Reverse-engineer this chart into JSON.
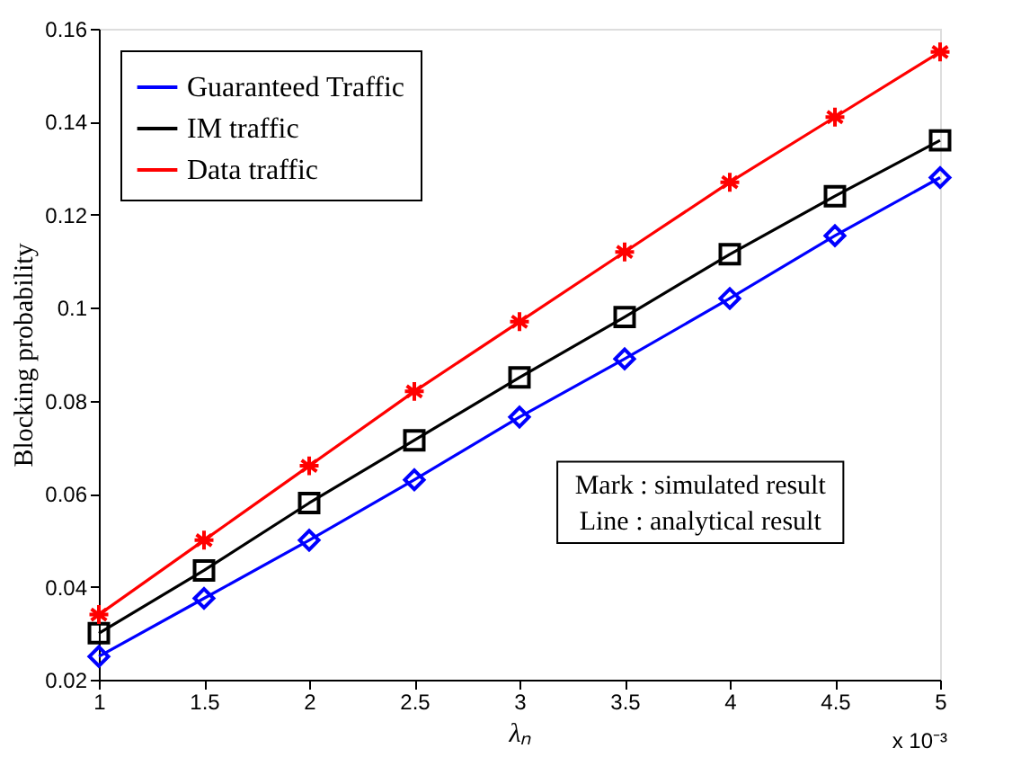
{
  "chart_data": {
    "type": "line",
    "xlabel": "λₙ",
    "ylabel": "Blocking probability",
    "x": [
      1,
      1.5,
      2,
      2.5,
      3,
      3.5,
      4,
      4.5,
      5
    ],
    "xlim": [
      1,
      5
    ],
    "xticks": [
      1,
      1.5,
      2,
      2.5,
      3,
      3.5,
      4,
      4.5,
      5
    ],
    "ylim": [
      0.02,
      0.16
    ],
    "yticks": [
      0.02,
      0.04,
      0.06,
      0.08,
      0.1,
      0.12,
      0.14,
      0.16
    ],
    "grid": false,
    "legend": "top left",
    "line_style": "solid",
    "series": [
      {
        "name": "Guaranteed Traffic",
        "color": "#0000ff",
        "marker": "diamond",
        "values": [
          0.025,
          0.0375,
          0.05,
          0.063,
          0.0765,
          0.089,
          0.102,
          0.1155,
          0.128
        ]
      },
      {
        "name": "IM traffic",
        "color": "#000000",
        "marker": "square",
        "values": [
          0.03,
          0.0435,
          0.058,
          0.0715,
          0.085,
          0.098,
          0.1115,
          0.124,
          0.136
        ]
      },
      {
        "name": "Data traffic",
        "color": "#ff0000",
        "marker": "cross",
        "values": [
          0.034,
          0.05,
          0.066,
          0.082,
          0.097,
          0.112,
          0.127,
          0.141,
          0.155
        ]
      }
    ],
    "annotations": [
      "Mark : simulated result",
      "Line : analytical result",
      "x 10⁻³"
    ]
  }
}
